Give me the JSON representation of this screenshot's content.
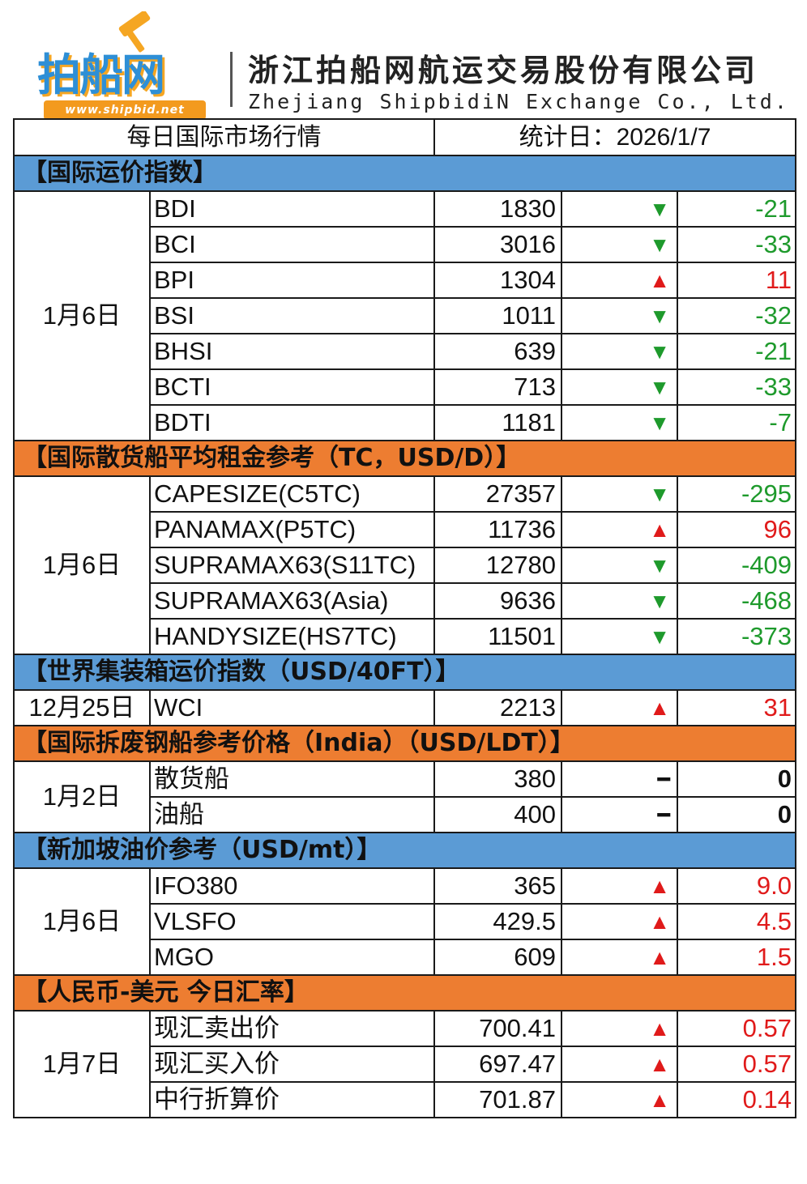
{
  "header": {
    "logo_text": "拍船网",
    "logo_url": "www.shipbid.net",
    "company_cn": "浙江拍船网航运交易股份有限公司",
    "company_en": "Zhejiang ShipbidiN Exchange Co., Ltd."
  },
  "table_header": {
    "title": "每日国际市场行情",
    "stat_date": "统计日：2026/1/7"
  },
  "sections": [
    {
      "title": "【国际运价指数】",
      "date": "1月6日",
      "rows": [
        {
          "name": "BDI",
          "value": "1830",
          "arrow": "▼",
          "change": "-21"
        },
        {
          "name": "BCI",
          "value": "3016",
          "arrow": "▼",
          "change": "-33"
        },
        {
          "name": "BPI",
          "value": "1304",
          "arrow": "▲",
          "change": "11"
        },
        {
          "name": "BSI",
          "value": "1011",
          "arrow": "▼",
          "change": "-32"
        },
        {
          "name": "BHSI",
          "value": "639",
          "arrow": "▼",
          "change": "-21"
        },
        {
          "name": "BCTI",
          "value": "713",
          "arrow": "▼",
          "change": "-33"
        },
        {
          "name": "BDTI",
          "value": "1181",
          "arrow": "▼",
          "change": "-7"
        }
      ]
    },
    {
      "title": "【国际散货船平均租金参考（TC，USD/D）】",
      "date": "1月6日",
      "rows": [
        {
          "name": "CAPESIZE(C5TC)",
          "value": "27357",
          "arrow": "▼",
          "change": "-295"
        },
        {
          "name": "PANAMAX(P5TC)",
          "value": "11736",
          "arrow": "▲",
          "change": "96"
        },
        {
          "name": "SUPRAMAX63(S11TC)",
          "value": "12780",
          "arrow": "▼",
          "change": "-409"
        },
        {
          "name": "SUPRAMAX63(Asia)",
          "value": "9636",
          "arrow": "▼",
          "change": "-468"
        },
        {
          "name": "HANDYSIZE(HS7TC)",
          "value": "11501",
          "arrow": "▼",
          "change": "-373"
        }
      ]
    },
    {
      "title": "【世界集装箱运价指数（USD/40FT）】",
      "date": "12月25日",
      "rows": [
        {
          "name": "WCI",
          "value": "2213",
          "arrow": "▲",
          "change": "31"
        }
      ]
    },
    {
      "title": "【国际拆废钢船参考价格（India）（USD/LDT）】",
      "date": "1月2日",
      "rows": [
        {
          "name": "散货船",
          "value": "380",
          "arrow": "━",
          "change": "0"
        },
        {
          "name": "油船",
          "value": "400",
          "arrow": "━",
          "change": "0"
        }
      ]
    },
    {
      "title": "【新加坡油价参考（USD/mt）】",
      "date": "1月6日",
      "rows": [
        {
          "name": "IFO380",
          "value": "365",
          "arrow": "▲",
          "change": "9.0"
        },
        {
          "name": "VLSFO",
          "value": "429.5",
          "arrow": "▲",
          "change": "4.5"
        },
        {
          "name": "MGO",
          "value": "609",
          "arrow": "▲",
          "change": "1.5"
        }
      ]
    },
    {
      "title": "【人民币-美元 今日汇率】",
      "date": "1月7日",
      "rows": [
        {
          "name": "现汇卖出价",
          "value": "700.41",
          "arrow": "▲",
          "change": "0.57"
        },
        {
          "name": "现汇买入价",
          "value": "697.47",
          "arrow": "▲",
          "change": "0.57"
        },
        {
          "name": "中行折算价",
          "value": "701.87",
          "arrow": "▲",
          "change": "0.14"
        }
      ]
    }
  ],
  "colors": {
    "section_blue": "#5b9bd5",
    "section_orange": "#ed7d31",
    "up": "#e01a1a",
    "down": "#1e9a2c"
  }
}
